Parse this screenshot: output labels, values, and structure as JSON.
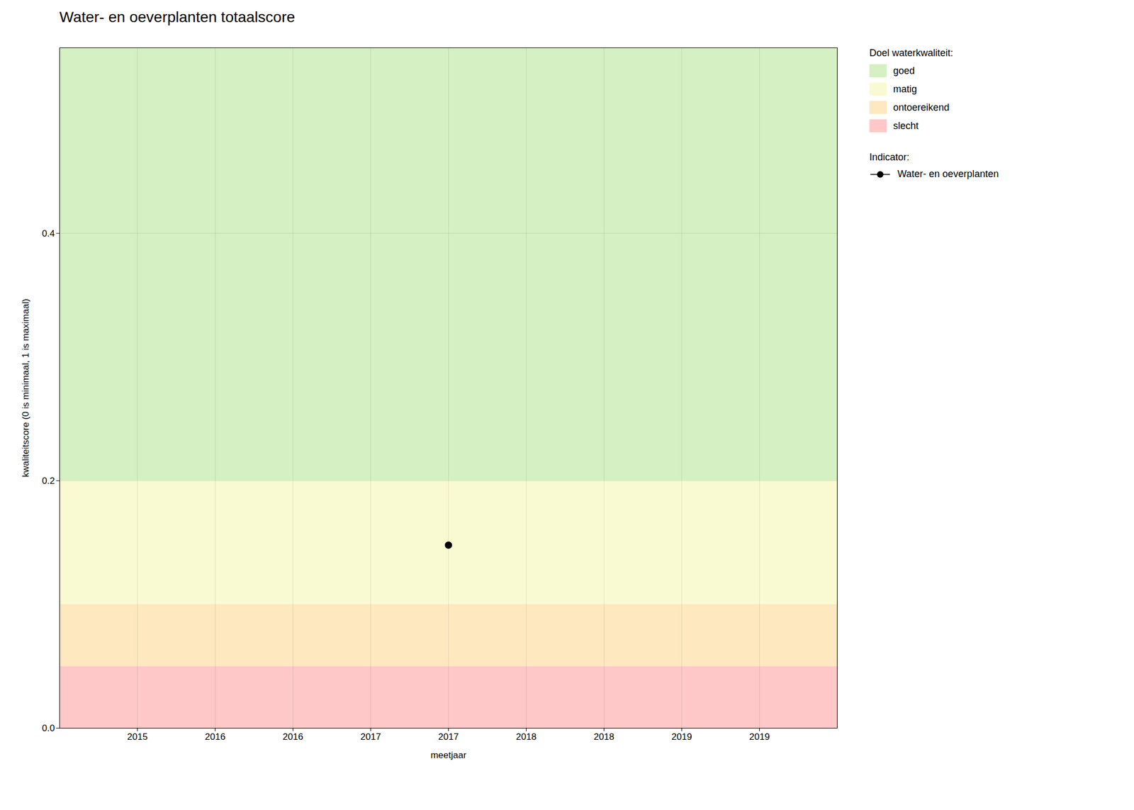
{
  "chart_data": {
    "type": "line",
    "title": "Water- en oeverplanten totaalscore",
    "xlabel": "meetjaar",
    "ylabel": "kwaliteitscore (0 is minimaal, 1 is maximaal)",
    "x": [
      2017
    ],
    "series": [
      {
        "name": "Water- en oeverplanten",
        "color": "#000000",
        "marker": "circle",
        "values": [
          0.148
        ]
      }
    ],
    "series_legend_title": "Indicator:",
    "bands": [
      {
        "name": "goed",
        "color": "#d5f0c2",
        "ymin": 0.2,
        "ymax": 0.55
      },
      {
        "name": "matig",
        "color": "#fafad2",
        "ymin": 0.1,
        "ymax": 0.2
      },
      {
        "name": "ontoereikend",
        "color": "#fde8c0",
        "ymin": 0.05,
        "ymax": 0.1
      },
      {
        "name": "slecht",
        "color": "#ffc8c8",
        "ymin": 0.0,
        "ymax": 0.05
      }
    ],
    "bands_legend_title": "Doel waterkwaliteit:",
    "xlim": [
      2014.5,
      2019.5
    ],
    "xticks": [
      2015,
      {
        "value": 2015.5,
        "label": "2016"
      },
      2016,
      {
        "value": 2016.5,
        "label": "2017"
      },
      2017,
      {
        "value": 2017.5,
        "label": "2018"
      },
      2018,
      {
        "value": 2018.5,
        "label": "2019"
      },
      2019
    ],
    "ylim": [
      0,
      0.55
    ],
    "yticks": [
      {
        "value": 0,
        "label": "0.0"
      },
      0.2,
      0.4
    ],
    "grid": true,
    "legend": "right"
  }
}
